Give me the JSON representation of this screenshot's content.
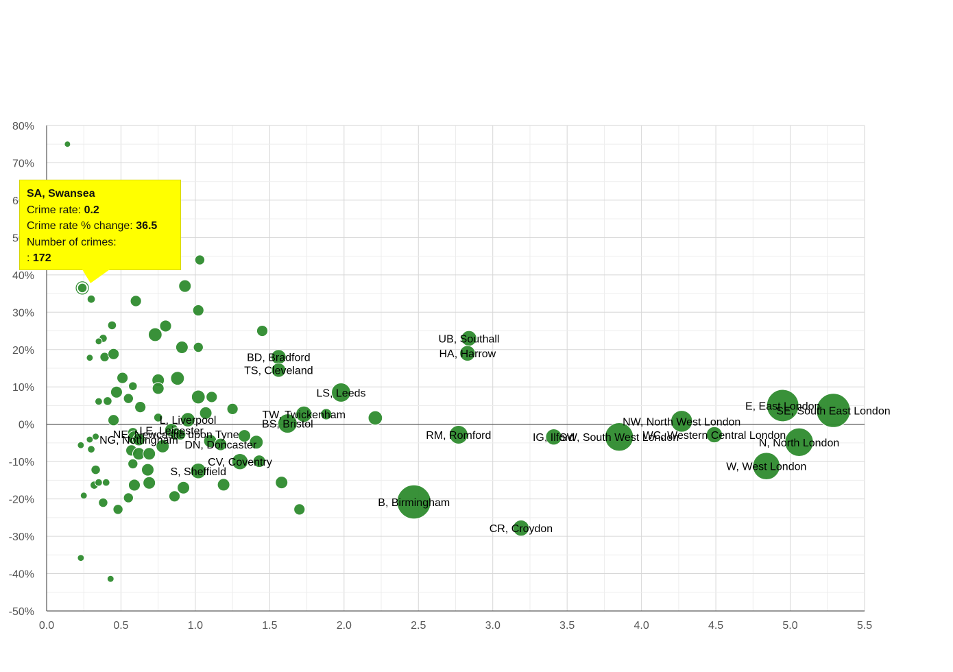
{
  "chart_data": {
    "type": "scatter",
    "title": "",
    "xlabel": "",
    "ylabel": "",
    "xlim": [
      0,
      5.5
    ],
    "ylim": [
      -50,
      80
    ],
    "x_ticks": [
      "0.0",
      "0.5",
      "1.0",
      "1.5",
      "2.0",
      "2.5",
      "3.0",
      "3.5",
      "4.0",
      "4.5",
      "5.0",
      "5.5"
    ],
    "x_tick_values": [
      0,
      0.5,
      1,
      1.5,
      2,
      2.5,
      3,
      3.5,
      4,
      4.5,
      5,
      5.5
    ],
    "y_ticks": [
      "80%",
      "70%",
      "60%",
      "50%",
      "40%",
      "30%",
      "20%",
      "10%",
      "0%",
      "-10%",
      "-20%",
      "-30%",
      "-40%",
      "-50%"
    ],
    "y_tick_values": [
      80,
      70,
      60,
      50,
      40,
      30,
      20,
      10,
      0,
      -10,
      -20,
      -30,
      -40,
      -50
    ],
    "bubble_color": "#2e8b2e",
    "points": [
      {
        "x": 0.14,
        "y": 75,
        "s": 1
      },
      {
        "x": 0.24,
        "y": 36.5,
        "s": 1.5
      },
      {
        "x": 0.3,
        "y": 33.5,
        "s": 1.3
      },
      {
        "x": 0.6,
        "y": 33,
        "s": 1.8
      },
      {
        "x": 0.93,
        "y": 37,
        "s": 2
      },
      {
        "x": 1.03,
        "y": 44,
        "s": 1.6
      },
      {
        "x": 1.02,
        "y": 30.5,
        "s": 1.8
      },
      {
        "x": 0.44,
        "y": 26.5,
        "s": 1.4
      },
      {
        "x": 0.38,
        "y": 23,
        "s": 1.3
      },
      {
        "x": 0.35,
        "y": 22.2,
        "s": 1.1
      },
      {
        "x": 0.29,
        "y": 17.8,
        "s": 1.1
      },
      {
        "x": 0.39,
        "y": 18,
        "s": 1.5
      },
      {
        "x": 0.45,
        "y": 18.8,
        "s": 1.8
      },
      {
        "x": 0.73,
        "y": 24,
        "s": 2.2
      },
      {
        "x": 0.8,
        "y": 26.3,
        "s": 1.9
      },
      {
        "x": 0.91,
        "y": 20.6,
        "s": 2
      },
      {
        "x": 1.02,
        "y": 20.6,
        "s": 1.6
      },
      {
        "x": 1.45,
        "y": 25,
        "s": 1.8
      },
      {
        "x": 0.51,
        "y": 12.4,
        "s": 1.8
      },
      {
        "x": 0.58,
        "y": 10.2,
        "s": 1.4
      },
      {
        "x": 0.75,
        "y": 11.8,
        "s": 2
      },
      {
        "x": 0.75,
        "y": 9.6,
        "s": 1.9
      },
      {
        "x": 0.88,
        "y": 12.3,
        "s": 2.2
      },
      {
        "x": 0.47,
        "y": 8.6,
        "s": 1.9
      },
      {
        "x": 0.55,
        "y": 6.9,
        "s": 1.6
      },
      {
        "x": 0.35,
        "y": 6.1,
        "s": 1.2
      },
      {
        "x": 0.41,
        "y": 6.2,
        "s": 1.4
      },
      {
        "x": 0.63,
        "y": 4.6,
        "s": 1.8
      },
      {
        "x": 1.02,
        "y": 7.3,
        "s": 2.2
      },
      {
        "x": 1.11,
        "y": 7.3,
        "s": 1.8
      },
      {
        "x": 1.25,
        "y": 4.1,
        "s": 1.8
      },
      {
        "x": 1.07,
        "y": 3,
        "s": 2
      },
      {
        "x": 0.75,
        "y": 1.8,
        "s": 1.4
      },
      {
        "x": 0.45,
        "y": 1.1,
        "s": 1.8
      },
      {
        "x": 0.95,
        "y": 1.2,
        "s": 2.3
      },
      {
        "x": 0.58,
        "y": -2.3,
        "s": 1.7
      },
      {
        "x": 0.59,
        "y": -3.6,
        "s": 2.2
      },
      {
        "x": 0.62,
        "y": -4.1,
        "s": 2
      },
      {
        "x": 0.84,
        "y": -1.6,
        "s": 2.2
      },
      {
        "x": 0.87,
        "y": -2.6,
        "s": 2
      },
      {
        "x": 0.9,
        "y": -2.8,
        "s": 1.7
      },
      {
        "x": 0.78,
        "y": -5.9,
        "s": 2.1
      },
      {
        "x": 1.1,
        "y": -4.5,
        "s": 2.1
      },
      {
        "x": 1.17,
        "y": -5.4,
        "s": 2
      },
      {
        "x": 1.33,
        "y": -3.1,
        "s": 2
      },
      {
        "x": 1.41,
        "y": -4.8,
        "s": 2.2
      },
      {
        "x": 0.33,
        "y": -3.3,
        "s": 1.1
      },
      {
        "x": 0.29,
        "y": -4.1,
        "s": 1.1
      },
      {
        "x": 0.23,
        "y": -5.6,
        "s": 1.1
      },
      {
        "x": 0.3,
        "y": -6.7,
        "s": 1.2
      },
      {
        "x": 0.57,
        "y": -7,
        "s": 1.8
      },
      {
        "x": 0.62,
        "y": -7.9,
        "s": 2
      },
      {
        "x": 0.69,
        "y": -7.9,
        "s": 2
      },
      {
        "x": 0.58,
        "y": -10.6,
        "s": 1.6
      },
      {
        "x": 1.3,
        "y": -10,
        "s": 2.6
      },
      {
        "x": 1.43,
        "y": -9.9,
        "s": 2
      },
      {
        "x": 0.68,
        "y": -12.2,
        "s": 2
      },
      {
        "x": 1.02,
        "y": -12.5,
        "s": 2.5
      },
      {
        "x": 0.33,
        "y": -12.2,
        "s": 1.5
      },
      {
        "x": 0.32,
        "y": -16.3,
        "s": 1.3
      },
      {
        "x": 0.35,
        "y": -15.6,
        "s": 1.2
      },
      {
        "x": 0.4,
        "y": -15.6,
        "s": 1.2
      },
      {
        "x": 0.59,
        "y": -16.3,
        "s": 1.9
      },
      {
        "x": 0.69,
        "y": -15.7,
        "s": 2
      },
      {
        "x": 0.92,
        "y": -17,
        "s": 2
      },
      {
        "x": 1.19,
        "y": -16.2,
        "s": 2
      },
      {
        "x": 1.58,
        "y": -15.6,
        "s": 2
      },
      {
        "x": 0.25,
        "y": -19.1,
        "s": 1.1
      },
      {
        "x": 0.55,
        "y": -19.7,
        "s": 1.6
      },
      {
        "x": 0.86,
        "y": -19.3,
        "s": 1.8
      },
      {
        "x": 0.38,
        "y": -21,
        "s": 1.5
      },
      {
        "x": 0.48,
        "y": -22.8,
        "s": 1.6
      },
      {
        "x": 1.7,
        "y": -22.8,
        "s": 1.8
      },
      {
        "x": 0.23,
        "y": -35.8,
        "s": 1.1
      },
      {
        "x": 0.43,
        "y": -41.4,
        "s": 1.1
      },
      {
        "x": 1.56,
        "y": 18,
        "s": 2.4
      },
      {
        "x": 1.56,
        "y": 14.5,
        "s": 2.3
      },
      {
        "x": 1.98,
        "y": 8.5,
        "s": 3.1
      },
      {
        "x": 1.73,
        "y": 2.7,
        "s": 2.6
      },
      {
        "x": 1.88,
        "y": 2.7,
        "s": 1.8
      },
      {
        "x": 1.62,
        "y": 0.2,
        "s": 3.1
      },
      {
        "x": 2.21,
        "y": 1.7,
        "s": 2.3
      },
      {
        "x": 2.84,
        "y": 23,
        "s": 2.5
      },
      {
        "x": 2.83,
        "y": 19,
        "s": 2.5
      },
      {
        "x": 2.77,
        "y": -2.8,
        "s": 3
      },
      {
        "x": 3.41,
        "y": -3.4,
        "s": 2.6
      },
      {
        "x": 3.85,
        "y": -3.4,
        "s": 4.6
      },
      {
        "x": 4.27,
        "y": 0.8,
        "s": 3.5
      },
      {
        "x": 4.49,
        "y": -2.8,
        "s": 2.6
      },
      {
        "x": 4.95,
        "y": 5,
        "s": 5.2
      },
      {
        "x": 5.29,
        "y": 3.7,
        "s": 5.5
      },
      {
        "x": 5.06,
        "y": -4.8,
        "s": 4.6
      },
      {
        "x": 4.84,
        "y": -11.2,
        "s": 4.4
      },
      {
        "x": 2.47,
        "y": -20.8,
        "s": 5.5
      },
      {
        "x": 3.19,
        "y": -27.8,
        "s": 2.6
      }
    ],
    "labels": [
      {
        "text": "UB, Southall",
        "x": 2.84,
        "y": 23
      },
      {
        "text": "HA, Harrow",
        "x": 2.83,
        "y": 19
      },
      {
        "text": "BD, Bradford",
        "x": 1.56,
        "y": 18
      },
      {
        "text": "TS, Cleveland",
        "x": 1.56,
        "y": 14.5
      },
      {
        "text": "LS, Leeds",
        "x": 1.98,
        "y": 8.5
      },
      {
        "text": "TW, Twickenham",
        "x": 1.73,
        "y": 2.7
      },
      {
        "text": "BS, Bristol",
        "x": 1.62,
        "y": 0.2
      },
      {
        "text": "L, Liverpool",
        "x": 0.95,
        "y": 1.2
      },
      {
        "text": "LE, Leicester",
        "x": 0.84,
        "y": -1.6
      },
      {
        "text": "NE, Newcastle upon Tyne",
        "x": 0.87,
        "y": -2.6
      },
      {
        "text": "NG, Nottingham",
        "x": 0.62,
        "y": -4.1
      },
      {
        "text": "DN, Doncaster",
        "x": 1.17,
        "y": -5.4
      },
      {
        "text": "CV, Coventry",
        "x": 1.3,
        "y": -10
      },
      {
        "text": "S, Sheffield",
        "x": 1.02,
        "y": -12.5
      },
      {
        "text": "RM, Romford",
        "x": 2.77,
        "y": -2.8
      },
      {
        "text": "IG, Ilford",
        "x": 3.41,
        "y": -3.4
      },
      {
        "text": "SW, South West London",
        "x": 3.85,
        "y": -3.4
      },
      {
        "text": "NW, North West London",
        "x": 4.27,
        "y": 0.8
      },
      {
        "text": "WC, Western Central London",
        "x": 4.49,
        "y": -2.8
      },
      {
        "text": "E, East London",
        "x": 4.95,
        "y": 5
      },
      {
        "text": "SE, South East London",
        "x": 5.29,
        "y": 3.7
      },
      {
        "text": "N, North London",
        "x": 5.06,
        "y": -4.8
      },
      {
        "text": "W, West London",
        "x": 4.84,
        "y": -11.2
      },
      {
        "text": "B, Birmingham",
        "x": 2.47,
        "y": -20.8
      },
      {
        "text": "CR, Croydon",
        "x": 3.19,
        "y": -27.8
      }
    ]
  },
  "tooltip": {
    "title": "SA, Swansea",
    "rate_label": "Crime rate:",
    "rate_value": "0.2",
    "change_label": "Crime rate % change:",
    "change_value": "36.5",
    "crimes_label": "Number of crimes:",
    "crimes_prefix": ":",
    "crimes_value": "172",
    "point_x": 0.24,
    "point_y": 36.5
  }
}
